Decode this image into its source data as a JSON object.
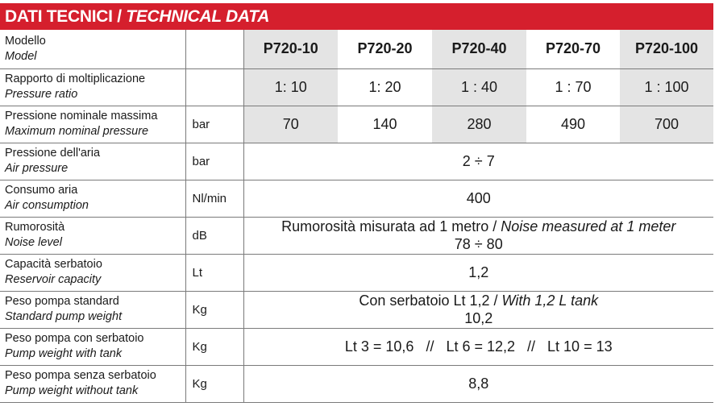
{
  "title": {
    "italian": "DATI TECNICI",
    "separator": " / ",
    "english": "TECHNICAL DATA"
  },
  "colors": {
    "header_bg": "#d51f2d",
    "shaded_cell": "#e4e4e4"
  },
  "models": [
    "P720-10",
    "P720-20",
    "P720-40",
    "P720-70",
    "P720-100"
  ],
  "rows": {
    "model": {
      "it": "Modello",
      "en": "Model",
      "unit": ""
    },
    "ratio": {
      "it": "Rapporto di moltiplicazione",
      "en": "Pressure ratio",
      "unit": "",
      "values": [
        "1: 10",
        "1: 20",
        "1 : 40",
        "1 : 70",
        "1 : 100"
      ]
    },
    "max_pressure": {
      "it": "Pressione nominale massima",
      "en": "Maximum nominal pressure",
      "unit": "bar",
      "values": [
        "70",
        "140",
        "280",
        "490",
        "700"
      ]
    },
    "air_pressure": {
      "it": "Pressione dell'aria",
      "en": "Air pressure",
      "unit": "bar",
      "value": "2 ÷ 7"
    },
    "air_consumption": {
      "it": "Consumo aria",
      "en": "Air consumption",
      "unit": "Nl/min",
      "value": "400"
    },
    "noise": {
      "it": "Rumorosità",
      "en": "Noise level",
      "unit": "dB",
      "note_it": "Rumorosità misurata ad 1 metro",
      "note_sep": " / ",
      "note_en": "Noise measured at 1 meter",
      "value": "78 ÷ 80"
    },
    "reservoir": {
      "it": "Capacità serbatoio",
      "en": "Reservoir capacity",
      "unit": "Lt",
      "value": "1,2"
    },
    "std_weight": {
      "it": "Peso pompa standard",
      "en": "Standard pump weight",
      "unit": "Kg",
      "note_it": "Con serbatoio Lt 1,2",
      "note_sep": " / ",
      "note_en": "With 1,2 L tank",
      "value": "10,2"
    },
    "tank_weight": {
      "it": "Peso pompa con serbatoio",
      "en": "Pump weight with tank",
      "unit": "Kg",
      "value": "Lt 3 = 10,6   //   Lt 6 = 12,2   //   Lt 10 = 13"
    },
    "no_tank_weight": {
      "it": "Peso pompa senza serbatoio",
      "en": "Pump weight without tank",
      "unit": "Kg",
      "value": "8,8"
    }
  }
}
